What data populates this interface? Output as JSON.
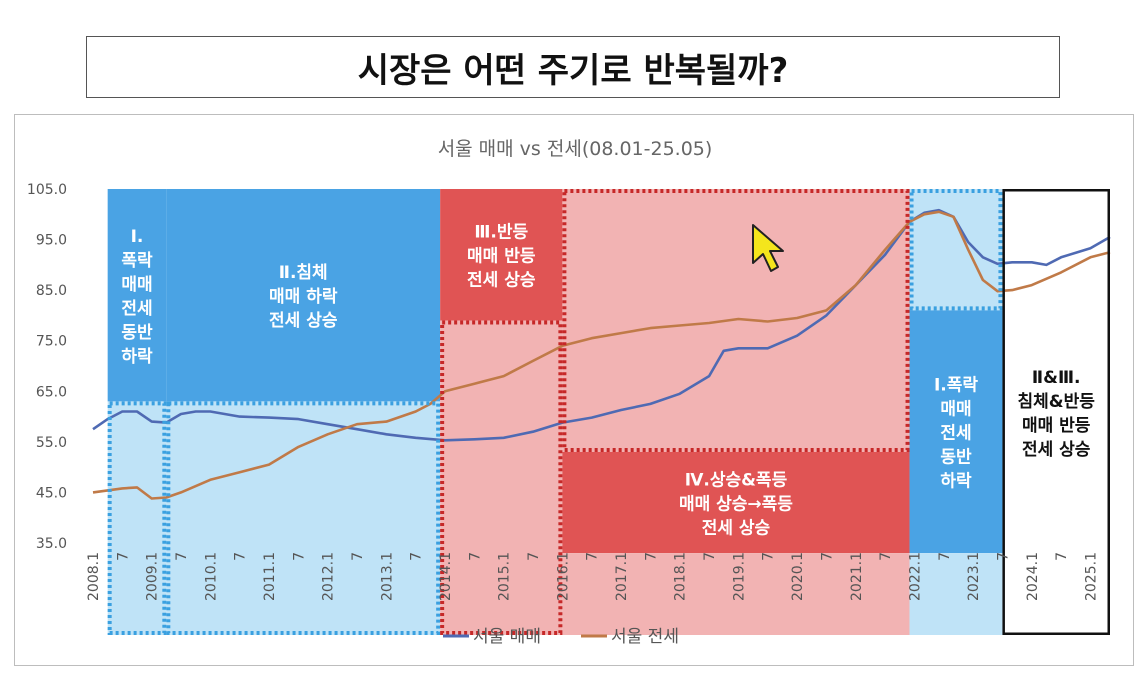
{
  "page": {
    "title": "시장은 어떤 주기로 반복될까?"
  },
  "chart_data": {
    "type": "line",
    "title": "서울 매매 vs 전세(08.01-25.05)",
    "x_ticks": [
      "2008.1",
      "7",
      "2009.1",
      "7",
      "2010.1",
      "7",
      "2011.1",
      "7",
      "2012.1",
      "7",
      "2013.1",
      "7",
      "2014.1",
      "7",
      "2015.1",
      "7",
      "2016.1",
      "7",
      "2017.1",
      "7",
      "2018.1",
      "7",
      "2019.1",
      "7",
      "2020.1",
      "7",
      "2021.1",
      "7",
      "2022.1",
      "7",
      "2023.1",
      "7",
      "2024.1",
      "7",
      "2025.1"
    ],
    "ylim": [
      35,
      105
    ],
    "y_ticks": [
      "105.0",
      "95.0",
      "85.0",
      "75.0",
      "65.0",
      "55.0",
      "45.0",
      "35.0"
    ],
    "grid": false,
    "legend_position": "bottom",
    "series": [
      {
        "name": "서울 매매",
        "color": "#4f6ab3",
        "points": [
          [
            "2008-01",
            57.5
          ],
          [
            "2008-04",
            59.5
          ],
          [
            "2008-07",
            61.0
          ],
          [
            "2008-10",
            61.0
          ],
          [
            "2009-01",
            59.0
          ],
          [
            "2009-04",
            58.8
          ],
          [
            "2009-07",
            60.5
          ],
          [
            "2009-10",
            61.0
          ],
          [
            "2010-01",
            61.0
          ],
          [
            "2010-07",
            60.0
          ],
          [
            "2011-01",
            59.8
          ],
          [
            "2011-07",
            59.5
          ],
          [
            "2012-01",
            58.5
          ],
          [
            "2012-07",
            57.5
          ],
          [
            "2013-01",
            56.5
          ],
          [
            "2013-07",
            55.8
          ],
          [
            "2014-01",
            55.3
          ],
          [
            "2014-07",
            55.5
          ],
          [
            "2015-01",
            55.8
          ],
          [
            "2015-07",
            57.0
          ],
          [
            "2016-01",
            58.8
          ],
          [
            "2016-07",
            59.8
          ],
          [
            "2017-01",
            61.3
          ],
          [
            "2017-07",
            62.5
          ],
          [
            "2018-01",
            64.5
          ],
          [
            "2018-07",
            68.0
          ],
          [
            "2018-10",
            73.0
          ],
          [
            "2019-01",
            73.5
          ],
          [
            "2019-07",
            73.5
          ],
          [
            "2020-01",
            76.0
          ],
          [
            "2020-07",
            80.0
          ],
          [
            "2021-01",
            86.0
          ],
          [
            "2021-07",
            92.0
          ],
          [
            "2021-12",
            98.5
          ],
          [
            "2022-03",
            100.3
          ],
          [
            "2022-06",
            100.8
          ],
          [
            "2022-09",
            99.5
          ],
          [
            "2022-12",
            94.5
          ],
          [
            "2023-03",
            91.5
          ],
          [
            "2023-06",
            90.2
          ],
          [
            "2023-09",
            90.5
          ],
          [
            "2024-01",
            90.5
          ],
          [
            "2024-04",
            90.0
          ],
          [
            "2024-07",
            91.5
          ],
          [
            "2025-01",
            93.3
          ],
          [
            "2025-05",
            95.5
          ]
        ]
      },
      {
        "name": "서울 전세",
        "color": "#c07a48",
        "points": [
          [
            "2008-01",
            45.0
          ],
          [
            "2008-07",
            45.8
          ],
          [
            "2008-10",
            46.0
          ],
          [
            "2009-01",
            43.8
          ],
          [
            "2009-04",
            44.0
          ],
          [
            "2009-07",
            45.0
          ],
          [
            "2010-01",
            47.5
          ],
          [
            "2010-07",
            49.0
          ],
          [
            "2011-01",
            50.5
          ],
          [
            "2011-07",
            54.0
          ],
          [
            "2012-01",
            56.5
          ],
          [
            "2012-07",
            58.5
          ],
          [
            "2013-01",
            59.0
          ],
          [
            "2013-07",
            61.0
          ],
          [
            "2013-10",
            62.5
          ],
          [
            "2014-01",
            65.0
          ],
          [
            "2014-07",
            66.5
          ],
          [
            "2015-01",
            68.0
          ],
          [
            "2015-07",
            71.0
          ],
          [
            "2016-01",
            74.0
          ],
          [
            "2016-07",
            75.5
          ],
          [
            "2017-01",
            76.5
          ],
          [
            "2017-07",
            77.5
          ],
          [
            "2018-01",
            78.0
          ],
          [
            "2018-07",
            78.5
          ],
          [
            "2019-01",
            79.3
          ],
          [
            "2019-07",
            78.8
          ],
          [
            "2020-01",
            79.5
          ],
          [
            "2020-07",
            81.0
          ],
          [
            "2021-01",
            86.0
          ],
          [
            "2021-07",
            93.0
          ],
          [
            "2021-12",
            98.5
          ],
          [
            "2022-03",
            100.0
          ],
          [
            "2022-06",
            100.5
          ],
          [
            "2022-09",
            99.5
          ],
          [
            "2022-12",
            93.0
          ],
          [
            "2023-03",
            87.0
          ],
          [
            "2023-06",
            84.8
          ],
          [
            "2023-09",
            85.0
          ],
          [
            "2024-01",
            86.0
          ],
          [
            "2024-07",
            88.5
          ],
          [
            "2025-01",
            91.5
          ],
          [
            "2025-05",
            92.5
          ]
        ]
      }
    ],
    "regions": [
      {
        "from": "2008-04",
        "to": "2009-04",
        "label": [
          "Ⅰ.",
          "폭락",
          "매매",
          "전세",
          "동반",
          "하락"
        ],
        "color": "#4aa3e4",
        "alpha": 1,
        "top": 105,
        "bottom": 63,
        "label_color": "#ffffff",
        "border": "none"
      },
      {
        "from": "2008-04",
        "to": "2009-04",
        "label": [],
        "color": "#bfe3f7",
        "alpha": 1,
        "top": 63,
        "bottom": "axis",
        "label_color": "#ffffff",
        "border": "dotted-blue"
      },
      {
        "from": "2009-04",
        "to": "2013-12",
        "label": [
          "Ⅱ.침체",
          "매매 하락",
          "전세 상승"
        ],
        "color": "#4aa3e4",
        "alpha": 1,
        "top": 105,
        "bottom": 63,
        "label_color": "#ffffff",
        "border": "none"
      },
      {
        "from": "2009-04",
        "to": "2013-12",
        "label": [],
        "color": "#bfe3f7",
        "alpha": 1,
        "top": 63,
        "bottom": "axis",
        "label_color": "#ffffff",
        "border": "dotted-blue"
      },
      {
        "from": "2013-12",
        "to": "2016-01",
        "label": [
          "Ⅲ.반등",
          "매매 반등",
          "전세 상승"
        ],
        "color": "#e05454",
        "alpha": 1,
        "top": 105,
        "bottom": 79,
        "label_color": "#ffffff",
        "border": "none"
      },
      {
        "from": "2013-12",
        "to": "2016-01",
        "label": [],
        "color": "#f2b3b3",
        "alpha": 1,
        "top": 79,
        "bottom": "axis",
        "label_color": "#ffffff",
        "border": "dotted-red"
      },
      {
        "from": "2016-01",
        "to": "2021-12",
        "label": [],
        "color": "#f2b3b3",
        "alpha": 1,
        "top": 105,
        "bottom": 53,
        "label_color": "#ffffff",
        "border": "dotted-red"
      },
      {
        "from": "2016-01",
        "to": "2021-12",
        "label": [
          "Ⅳ.상승&폭등",
          "매매 상승→폭등",
          "전세 상승"
        ],
        "color": "#e05454",
        "alpha": 1,
        "top": 53,
        "bottom": 33,
        "label_color": "#ffffff",
        "border": "none"
      },
      {
        "from": "2016-01",
        "to": "2021-12",
        "label": [],
        "color": "#f2b3b3",
        "alpha": 1,
        "top": 33,
        "bottom": "axis",
        "label_color": "#ffffff",
        "border": "none"
      },
      {
        "from": "2021-12",
        "to": "2023-07",
        "label": [],
        "color": "#bfe3f7",
        "alpha": 1,
        "top": 105,
        "bottom": 81,
        "label_color": "#ffffff",
        "border": "dotted-blue"
      },
      {
        "from": "2021-12",
        "to": "2023-07",
        "label": [
          "Ⅰ.폭락",
          "매매",
          "전세",
          "동반",
          "하락"
        ],
        "color": "#4aa3e4",
        "alpha": 1,
        "top": 81,
        "bottom": 33,
        "label_color": "#ffffff",
        "border": "none"
      },
      {
        "from": "2021-12",
        "to": "2023-07",
        "label": [],
        "color": "#bfe3f7",
        "alpha": 1,
        "top": 33,
        "bottom": "axis",
        "label_color": "#ffffff",
        "border": "none"
      },
      {
        "from": "2023-07",
        "to": "2025-05",
        "label": [
          "Ⅱ&Ⅲ.",
          "침체&반등",
          "매매 반등",
          "전세 상승"
        ],
        "color": "none",
        "alpha": 0,
        "top": 105,
        "bottom": "axis",
        "label_color": "#111111",
        "border": "solid-black"
      }
    ]
  },
  "cursor_icon": "mouse-pointer-icon"
}
